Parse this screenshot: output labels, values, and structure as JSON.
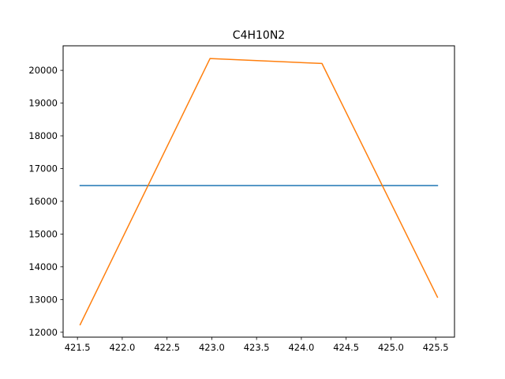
{
  "chart_data": {
    "type": "line",
    "title": "C4H10N2",
    "xlabel": "",
    "ylabel": "",
    "xlim": [
      421.34,
      425.71
    ],
    "ylim": [
      11850,
      20750
    ],
    "grid": false,
    "legend": "none",
    "x_ticks": [
      421.5,
      422.0,
      422.5,
      423.0,
      423.5,
      424.0,
      424.5,
      425.0,
      425.5
    ],
    "x_tick_labels": [
      "421.5",
      "422.0",
      "422.5",
      "423.0",
      "423.5",
      "424.0",
      "424.5",
      "425.0",
      "425.5"
    ],
    "y_ticks": [
      12000,
      13000,
      14000,
      15000,
      16000,
      17000,
      18000,
      19000,
      20000
    ],
    "y_tick_labels": [
      "12000",
      "13000",
      "14000",
      "15000",
      "16000",
      "17000",
      "18000",
      "19000",
      "20000"
    ],
    "series": [
      {
        "color": "#1f77b4",
        "x": [
          421.53,
          425.52
        ],
        "y": [
          16480,
          16480
        ]
      },
      {
        "color": "#ff7f0e",
        "x": [
          421.53,
          422.98,
          424.23,
          425.52
        ],
        "y": [
          12230,
          20360,
          20210,
          13070
        ]
      }
    ]
  }
}
